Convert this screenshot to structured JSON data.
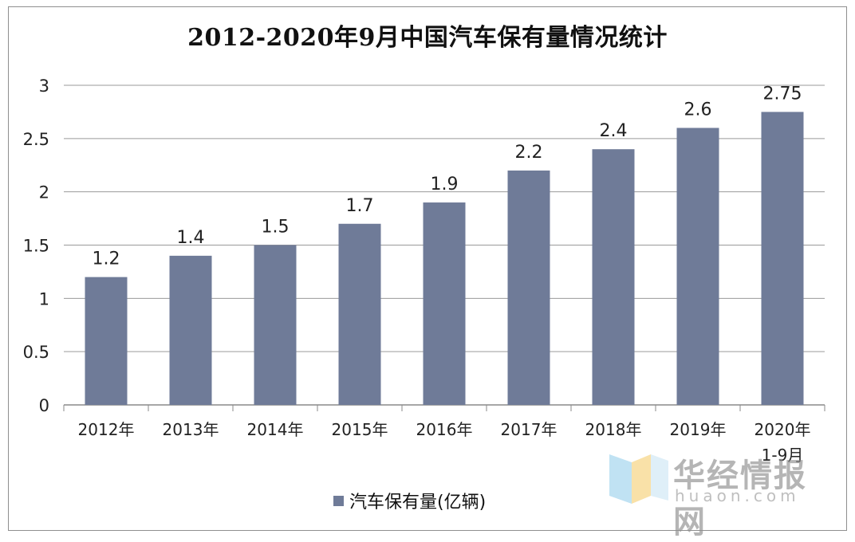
{
  "chart_data": {
    "type": "bar",
    "title": "2012-2020年9月中国汽车保有量情况统计",
    "categories": [
      "2012年",
      "2013年",
      "2014年",
      "2015年",
      "2016年",
      "2017年",
      "2018年",
      "2019年",
      "2020年\n1-9月"
    ],
    "series": [
      {
        "name": "汽车保有量(亿辆)",
        "values": [
          1.2,
          1.4,
          1.5,
          1.7,
          1.9,
          2.2,
          2.4,
          2.6,
          2.75
        ],
        "color": "#6f7b98"
      }
    ],
    "data_labels": [
      "1.2",
      "1.4",
      "1.5",
      "1.7",
      "1.9",
      "2.2",
      "2.4",
      "2.6",
      "2.75"
    ],
    "yticks": [
      "0",
      "0.5",
      "1",
      "1.5",
      "2",
      "2.5",
      "3"
    ],
    "ylim": [
      0,
      3
    ],
    "grid": true,
    "legend_position": "bottom",
    "xlabel": "",
    "ylabel": ""
  },
  "watermark": {
    "brand": "华经情报网",
    "domain": "huaon.com"
  }
}
